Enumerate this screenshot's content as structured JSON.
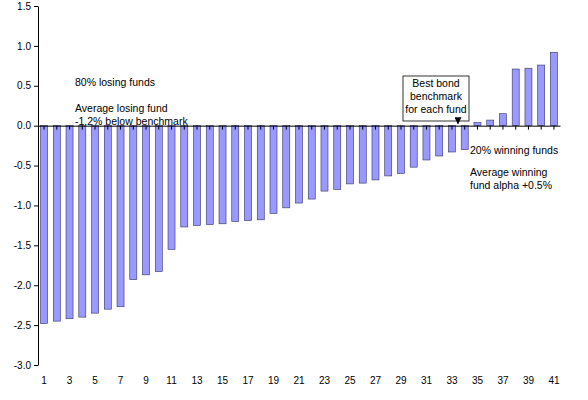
{
  "chart_data": {
    "type": "bar",
    "categories": [
      "1",
      null,
      "3",
      null,
      "5",
      null,
      "7",
      null,
      "9",
      null,
      "11",
      null,
      "13",
      null,
      "15",
      null,
      "17",
      null,
      "19",
      null,
      "21",
      null,
      "23",
      null,
      "25",
      null,
      "27",
      null,
      "29",
      null,
      "31",
      null,
      "33",
      null,
      "35",
      null,
      "37",
      null,
      "39",
      null,
      "41"
    ],
    "values": [
      -2.48,
      -2.45,
      -2.42,
      -2.4,
      -2.35,
      -2.3,
      -2.27,
      -1.93,
      -1.87,
      -1.83,
      -1.55,
      -1.27,
      -1.25,
      -1.24,
      -1.23,
      -1.2,
      -1.19,
      -1.18,
      -1.1,
      -1.03,
      -0.97,
      -0.92,
      -0.82,
      -0.8,
      -0.73,
      -0.72,
      -0.68,
      -0.63,
      -0.6,
      -0.52,
      -0.43,
      -0.38,
      -0.33,
      -0.3,
      0.04,
      0.07,
      0.15,
      0.71,
      0.72,
      0.76,
      0.92
    ],
    "color": "#9999ff",
    "ylim": [
      -3.0,
      1.5
    ],
    "yticks": [
      {
        "value": 1.5,
        "label": "1.5"
      },
      {
        "value": 1.0,
        "label": "1.0"
      },
      {
        "value": 0.5,
        "label": "0.5"
      },
      {
        "value": 0.0,
        "label": "0.0"
      },
      {
        "value": -0.5,
        "label": "-0.5"
      },
      {
        "value": -1.0,
        "label": "-1.0"
      },
      {
        "value": -1.5,
        "label": "-1.5"
      },
      {
        "value": -2.0,
        "label": "-2.0"
      },
      {
        "value": -2.5,
        "label": "-2.5"
      },
      {
        "value": -3.0,
        "label": "-3.0"
      }
    ],
    "grid": false,
    "annotations": [
      [
        "80% losing funds"
      ],
      [
        "Average losing fund",
        "-1.2% below benchmark"
      ],
      [
        "Best bond",
        "benchmark",
        "for each fund"
      ],
      [
        "20% winning funds"
      ],
      [
        "Average winning",
        "fund alpha +0.5%"
      ]
    ]
  }
}
